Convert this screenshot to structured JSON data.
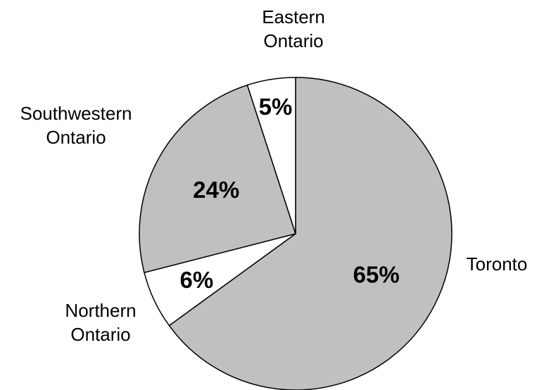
{
  "chart_data": {
    "type": "pie",
    "title": "",
    "start_angle_deg": 0,
    "direction": "clockwise",
    "slices": [
      {
        "label": "Toronto",
        "value": 65,
        "value_label": "65%",
        "color": "#c0c0c0"
      },
      {
        "label": "Northern Ontario",
        "value": 6,
        "value_label": "6%",
        "color": "#ffffff"
      },
      {
        "label": "Southwestern Ontario",
        "value": 24,
        "value_label": "24%",
        "color": "#c0c0c0"
      },
      {
        "label": "Eastern Ontario",
        "value": 5,
        "value_label": "5%",
        "color": "#ffffff"
      }
    ],
    "category_label_lines": [
      [
        "Toronto"
      ],
      [
        "Northern",
        "Ontario"
      ],
      [
        "Southwestern",
        "Ontario"
      ],
      [
        "Eastern",
        "Ontario"
      ]
    ],
    "stroke_color": "#000000",
    "legend": "none"
  }
}
